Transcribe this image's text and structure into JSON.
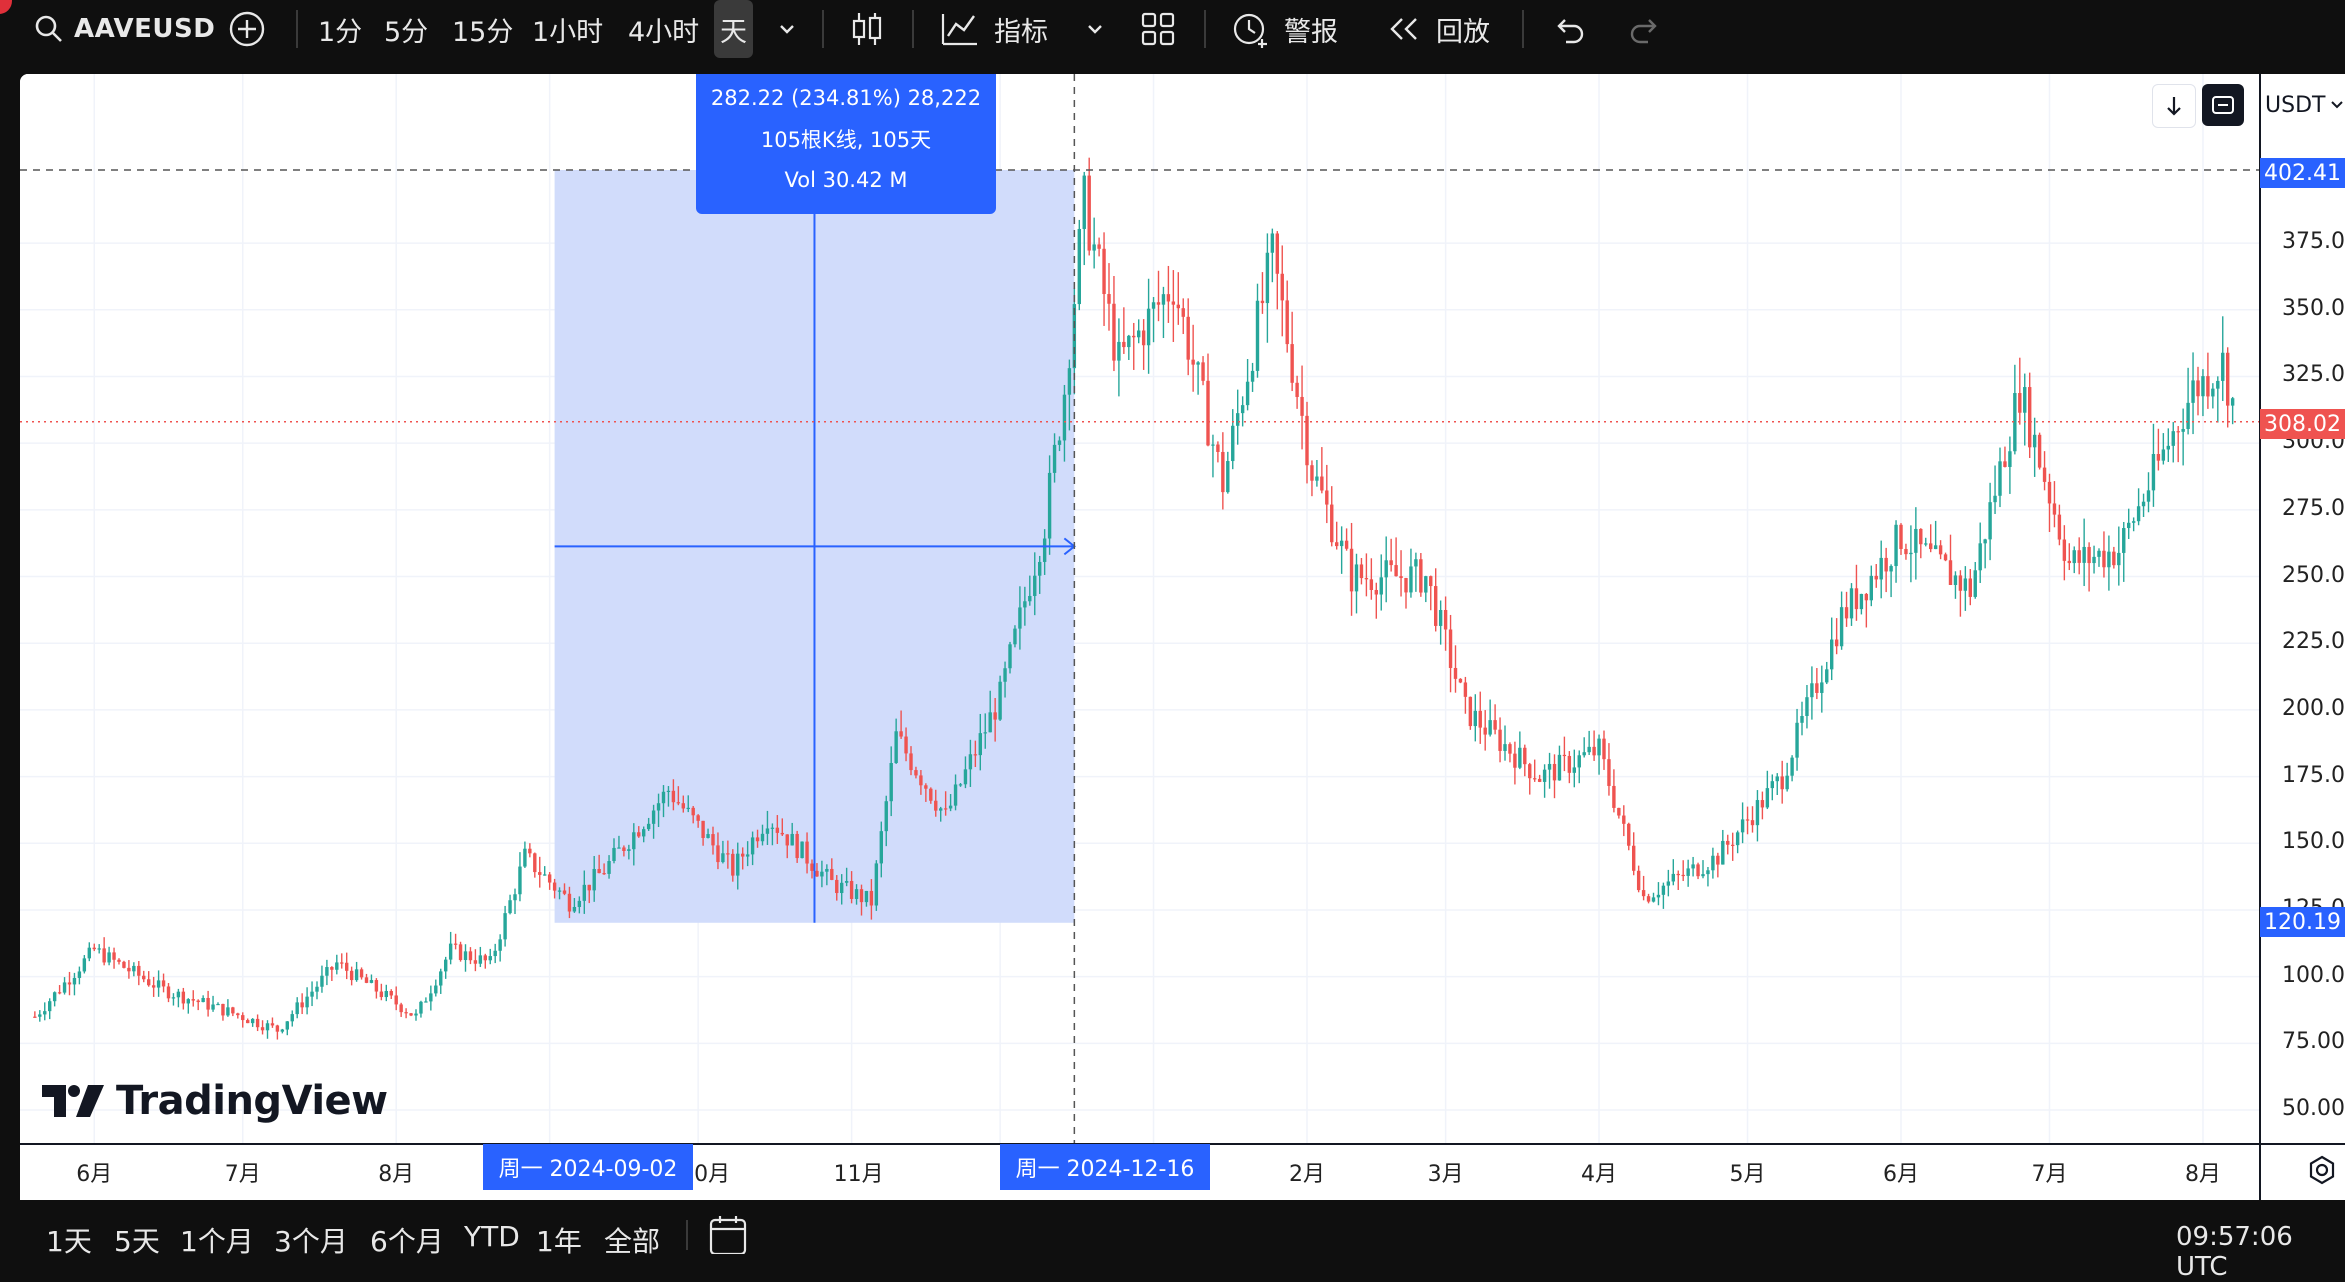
{
  "toolbar": {
    "symbol": "AAVEUSD",
    "timeframes": [
      "1分",
      "5分",
      "15分",
      "1小时",
      "4小时",
      "天"
    ],
    "indicators_label": "指标",
    "alert_label": "警报",
    "replay_label": "回放"
  },
  "chart_header": {
    "currency": "USDT"
  },
  "measure": {
    "line1": "282.22 (234.81%) 28,222",
    "line2": "105根K线, 105天",
    "line3": "Vol 30.42 M"
  },
  "price_axis": {
    "labels": [
      "375.00",
      "350.00",
      "325.00",
      "300.00",
      "275.00",
      "250.00",
      "225.00",
      "200.00",
      "175.00",
      "150.00",
      "125.00",
      "100.00",
      "75.00",
      "50.00"
    ],
    "high_tag": "402.41",
    "last_tag": "308.02",
    "low_tag": "120.19"
  },
  "time_axis": {
    "months": [
      "6月",
      "7月",
      "8月",
      "10月",
      "11月",
      "2月",
      "3月",
      "4月",
      "5月",
      "6月",
      "7月",
      "8月"
    ],
    "start_tag": "周一 2024-09-02",
    "end_tag": "周一 2024-12-16"
  },
  "watermark": "TradingView",
  "ranges": [
    "1天",
    "5天",
    "1个月",
    "3个月",
    "6个月",
    "YTD",
    "1年",
    "全部"
  ],
  "clock": "09:57:06 UTC",
  "colors": {
    "up": "#26a69a",
    "down": "#ef5350",
    "accent": "#2962ff",
    "selection": "#d1dcfb"
  },
  "chart_data": {
    "type": "candlestick",
    "symbol": "AAVEUSD",
    "interval": "1D",
    "y_range": [
      40,
      415
    ],
    "x_range": [
      "2024-05-17",
      "2025-08-18"
    ],
    "key_values": {
      "last": 308.02,
      "measure_high": 402.41,
      "measure_low": 120.19
    },
    "close_path": [
      [
        "2024-05-20",
        85
      ],
      [
        "2024-06-01",
        110
      ],
      [
        "2024-06-15",
        95
      ],
      [
        "2024-07-01",
        85
      ],
      [
        "2024-07-08",
        80
      ],
      [
        "2024-07-20",
        105
      ],
      [
        "2024-08-05",
        85
      ],
      [
        "2024-08-12",
        110
      ],
      [
        "2024-08-20",
        105
      ],
      [
        "2024-08-27",
        145
      ],
      [
        "2024-09-05",
        128
      ],
      [
        "2024-09-12",
        140
      ],
      [
        "2024-09-25",
        170
      ],
      [
        "2024-10-08",
        140
      ],
      [
        "2024-10-15",
        160
      ],
      [
        "2024-10-28",
        135
      ],
      [
        "2024-11-05",
        128
      ],
      [
        "2024-11-10",
        190
      ],
      [
        "2024-11-20",
        160
      ],
      [
        "2024-12-01",
        205
      ],
      [
        "2024-12-10",
        270
      ],
      [
        "2024-12-14",
        320
      ],
      [
        "2024-12-18",
        390
      ],
      [
        "2024-12-25",
        330
      ],
      [
        "2025-01-05",
        360
      ],
      [
        "2025-01-15",
        285
      ],
      [
        "2025-01-25",
        370
      ],
      [
        "2025-02-02",
        290
      ],
      [
        "2025-02-10",
        250
      ],
      [
        "2025-02-25",
        250
      ],
      [
        "2025-03-05",
        200
      ],
      [
        "2025-03-20",
        175
      ],
      [
        "2025-04-01",
        185
      ],
      [
        "2025-04-10",
        130
      ],
      [
        "2025-04-25",
        145
      ],
      [
        "2025-05-08",
        175
      ],
      [
        "2025-05-20",
        235
      ],
      [
        "2025-06-01",
        265
      ],
      [
        "2025-06-15",
        245
      ],
      [
        "2025-06-25",
        320
      ],
      [
        "2025-07-05",
        255
      ],
      [
        "2025-07-15",
        260
      ],
      [
        "2025-07-30",
        320
      ],
      [
        "2025-08-05",
        330
      ],
      [
        "2025-08-08",
        308
      ]
    ]
  }
}
